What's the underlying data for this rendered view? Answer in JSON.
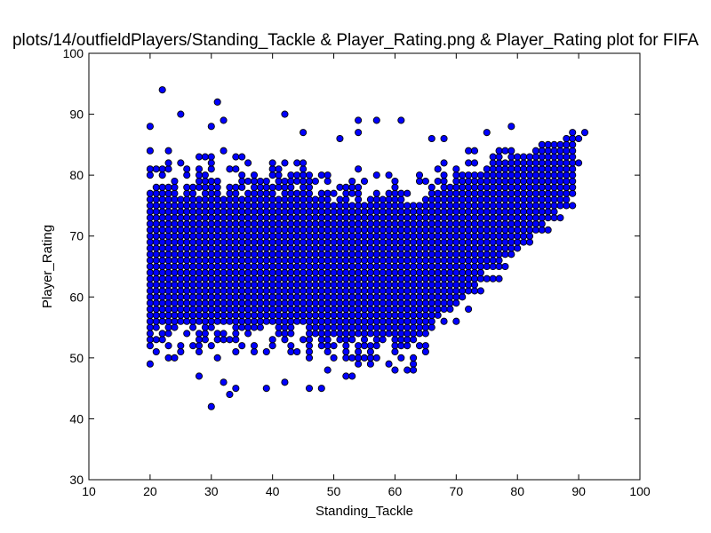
{
  "chart_data": {
    "type": "scatter",
    "title": "plots/14/outfieldPlayers/Standing_Tackle & Player_Rating.png & Player_Rating plot for FIFA",
    "xlabel": "Standing_Tackle",
    "ylabel": "Player_Rating",
    "xlim": [
      10,
      100
    ],
    "ylim": [
      30,
      100
    ],
    "xticks": [
      "10",
      "20",
      "30",
      "40",
      "50",
      "60",
      "70",
      "80",
      "90",
      "100"
    ],
    "yticks": [
      "30",
      "40",
      "50",
      "60",
      "70",
      "80",
      "90",
      "100"
    ],
    "grid": false,
    "legend": "none",
    "marker_color": "#0000ff",
    "marker_edge_color": "#000000",
    "dense_band": {
      "description_x_ranges": [
        {
          "x_from": 20,
          "x_to": 45,
          "y_low": 55,
          "y_high": 76
        },
        {
          "x_from": 46,
          "x_to": 65,
          "y_low": 53,
          "y_high": 75
        },
        {
          "x_from": 66,
          "x_to": 80,
          "y_low": 58,
          "y_high": 78
        }
      ]
    },
    "outliers": [
      {
        "x": 22,
        "y": 94
      },
      {
        "x": 31,
        "y": 92
      },
      {
        "x": 42,
        "y": 90
      },
      {
        "x": 25,
        "y": 90
      },
      {
        "x": 20,
        "y": 88
      },
      {
        "x": 30,
        "y": 88
      },
      {
        "x": 32,
        "y": 89
      },
      {
        "x": 54,
        "y": 89
      },
      {
        "x": 57,
        "y": 89
      },
      {
        "x": 61,
        "y": 89
      },
      {
        "x": 79,
        "y": 88
      },
      {
        "x": 45,
        "y": 87
      },
      {
        "x": 54,
        "y": 87
      },
      {
        "x": 75,
        "y": 87
      },
      {
        "x": 89,
        "y": 87
      },
      {
        "x": 91,
        "y": 87
      },
      {
        "x": 90,
        "y": 86
      },
      {
        "x": 51,
        "y": 86
      },
      {
        "x": 66,
        "y": 86
      },
      {
        "x": 68,
        "y": 86
      },
      {
        "x": 90,
        "y": 82
      },
      {
        "x": 88,
        "y": 79
      },
      {
        "x": 87,
        "y": 73
      },
      {
        "x": 30,
        "y": 42
      },
      {
        "x": 33,
        "y": 44
      },
      {
        "x": 34,
        "y": 45
      },
      {
        "x": 39,
        "y": 45
      },
      {
        "x": 46,
        "y": 45
      },
      {
        "x": 48,
        "y": 45
      },
      {
        "x": 32,
        "y": 46
      },
      {
        "x": 42,
        "y": 46
      },
      {
        "x": 28,
        "y": 47
      },
      {
        "x": 52,
        "y": 47
      },
      {
        "x": 53,
        "y": 47
      },
      {
        "x": 60,
        "y": 48
      },
      {
        "x": 63,
        "y": 48
      },
      {
        "x": 20,
        "y": 49
      },
      {
        "x": 59,
        "y": 49
      },
      {
        "x": 70,
        "y": 56
      },
      {
        "x": 72,
        "y": 58
      },
      {
        "x": 74,
        "y": 61
      },
      {
        "x": 76,
        "y": 63
      },
      {
        "x": 77,
        "y": 63
      },
      {
        "x": 78,
        "y": 65
      },
      {
        "x": 80,
        "y": 68
      },
      {
        "x": 81,
        "y": 69
      },
      {
        "x": 82,
        "y": 70
      }
    ]
  }
}
